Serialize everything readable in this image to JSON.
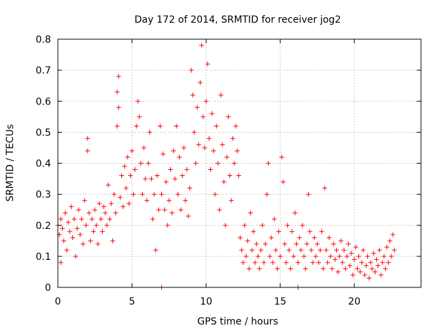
{
  "chart_data": {
    "type": "scatter",
    "title": "Day 172 of 2014, SRMTID for receiver jog2",
    "xlabel": "GPS time / hours",
    "ylabel": "SRMTID / TECUs",
    "xlim": [
      0,
      24.5
    ],
    "ylim": [
      0,
      0.8
    ],
    "x_ticks": [
      0,
      5,
      10,
      15,
      20
    ],
    "x_tick_labels": [
      "0",
      "5",
      "10",
      "15",
      "20"
    ],
    "y_ticks": [
      0,
      0.1,
      0.2,
      0.3,
      0.4,
      0.5,
      0.6,
      0.7,
      0.8
    ],
    "y_tick_labels": [
      "0",
      "0.1",
      "0.2",
      "0.3",
      "0.4",
      "0.5",
      "0.6",
      "0.7",
      "0.8"
    ],
    "grid": true,
    "marker": "+",
    "color": "#ff0000",
    "series": [
      {
        "name": "jog2",
        "points": [
          [
            0.0,
            0.2
          ],
          [
            0.1,
            0.17
          ],
          [
            0.2,
            0.08
          ],
          [
            0.2,
            0.22
          ],
          [
            0.3,
            0.19
          ],
          [
            0.4,
            0.15
          ],
          [
            0.5,
            0.24
          ],
          [
            0.6,
            0.12
          ],
          [
            0.7,
            0.21
          ],
          [
            0.8,
            0.18
          ],
          [
            0.9,
            0.26
          ],
          [
            1.0,
            0.16
          ],
          [
            1.1,
            0.22
          ],
          [
            1.2,
            0.1
          ],
          [
            1.3,
            0.19
          ],
          [
            1.4,
            0.25
          ],
          [
            1.5,
            0.17
          ],
          [
            1.6,
            0.22
          ],
          [
            1.7,
            0.14
          ],
          [
            1.8,
            0.28
          ],
          [
            1.9,
            0.2
          ],
          [
            2.0,
            0.44
          ],
          [
            2.0,
            0.48
          ],
          [
            2.1,
            0.24
          ],
          [
            2.2,
            0.15
          ],
          [
            2.3,
            0.22
          ],
          [
            2.4,
            0.18
          ],
          [
            2.5,
            0.25
          ],
          [
            2.6,
            0.2
          ],
          [
            2.7,
            0.14
          ],
          [
            2.8,
            0.27
          ],
          [
            2.9,
            0.22
          ],
          [
            3.0,
            0.18
          ],
          [
            3.1,
            0.26
          ],
          [
            3.2,
            0.24
          ],
          [
            3.3,
            0.2
          ],
          [
            3.4,
            0.33
          ],
          [
            3.5,
            0.22
          ],
          [
            3.6,
            0.27
          ],
          [
            3.7,
            0.15
          ],
          [
            3.8,
            0.3
          ],
          [
            3.9,
            0.24
          ],
          [
            4.0,
            0.52
          ],
          [
            4.0,
            0.63
          ],
          [
            4.1,
            0.68
          ],
          [
            4.1,
            0.58
          ],
          [
            4.2,
            0.29
          ],
          [
            4.3,
            0.36
          ],
          [
            4.4,
            0.26
          ],
          [
            4.5,
            0.39
          ],
          [
            4.6,
            0.32
          ],
          [
            4.7,
            0.42
          ],
          [
            4.8,
            0.27
          ],
          [
            4.9,
            0.36
          ],
          [
            5.0,
            0.44
          ],
          [
            5.1,
            0.3
          ],
          [
            5.2,
            0.38
          ],
          [
            5.3,
            0.52
          ],
          [
            5.4,
            0.6
          ],
          [
            5.5,
            0.55
          ],
          [
            5.6,
            0.4
          ],
          [
            5.7,
            0.3
          ],
          [
            5.8,
            0.45
          ],
          [
            5.9,
            0.35
          ],
          [
            6.0,
            0.28
          ],
          [
            6.1,
            0.4
          ],
          [
            6.2,
            0.5
          ],
          [
            6.3,
            0.35
          ],
          [
            6.4,
            0.22
          ],
          [
            6.5,
            0.3
          ],
          [
            6.6,
            0.12
          ],
          [
            6.7,
            0.36
          ],
          [
            6.8,
            0.25
          ],
          [
            6.9,
            0.52
          ],
          [
            7.0,
            0.3
          ],
          [
            7.1,
            0.43
          ],
          [
            7.2,
            0.25
          ],
          [
            7.3,
            0.34
          ],
          [
            7.4,
            0.2
          ],
          [
            7.5,
            0.28
          ],
          [
            7.6,
            0.38
          ],
          [
            7.7,
            0.24
          ],
          [
            7.8,
            0.44
          ],
          [
            7.9,
            0.35
          ],
          [
            8.0,
            0.52
          ],
          [
            8.1,
            0.3
          ],
          [
            8.2,
            0.42
          ],
          [
            8.3,
            0.25
          ],
          [
            8.4,
            0.36
          ],
          [
            8.5,
            0.45
          ],
          [
            8.6,
            0.28
          ],
          [
            8.7,
            0.38
          ],
          [
            8.8,
            0.23
          ],
          [
            8.9,
            0.32
          ],
          [
            9.0,
            0.7
          ],
          [
            9.1,
            0.62
          ],
          [
            9.2,
            0.5
          ],
          [
            9.3,
            0.4
          ],
          [
            9.4,
            0.58
          ],
          [
            9.5,
            0.46
          ],
          [
            9.6,
            0.66
          ],
          [
            9.7,
            0.78
          ],
          [
            9.8,
            0.55
          ],
          [
            9.9,
            0.45
          ],
          [
            10.0,
            0.6
          ],
          [
            10.1,
            0.72
          ],
          [
            10.2,
            0.48
          ],
          [
            10.3,
            0.38
          ],
          [
            10.4,
            0.56
          ],
          [
            10.5,
            0.44
          ],
          [
            10.6,
            0.3
          ],
          [
            10.7,
            0.52
          ],
          [
            10.8,
            0.4
          ],
          [
            10.9,
            0.25
          ],
          [
            11.0,
            0.62
          ],
          [
            11.1,
            0.46
          ],
          [
            11.2,
            0.34
          ],
          [
            11.3,
            0.2
          ],
          [
            11.4,
            0.42
          ],
          [
            11.5,
            0.55
          ],
          [
            11.6,
            0.36
          ],
          [
            11.7,
            0.28
          ],
          [
            11.8,
            0.48
          ],
          [
            11.9,
            0.4
          ],
          [
            12.0,
            0.52
          ],
          [
            12.1,
            0.44
          ],
          [
            12.2,
            0.36
          ],
          [
            12.3,
            0.16
          ],
          [
            12.4,
            0.12
          ],
          [
            12.5,
            0.08
          ],
          [
            12.6,
            0.2
          ],
          [
            12.7,
            0.1
          ],
          [
            12.8,
            0.15
          ],
          [
            12.9,
            0.06
          ],
          [
            13.0,
            0.24
          ],
          [
            13.1,
            0.12
          ],
          [
            13.2,
            0.18
          ],
          [
            13.3,
            0.08
          ],
          [
            13.4,
            0.14
          ],
          [
            13.5,
            0.1
          ],
          [
            13.6,
            0.06
          ],
          [
            13.7,
            0.12
          ],
          [
            13.8,
            0.2
          ],
          [
            13.9,
            0.08
          ],
          [
            14.0,
            0.14
          ],
          [
            14.1,
            0.3
          ],
          [
            14.2,
            0.4
          ],
          [
            14.3,
            0.1
          ],
          [
            14.4,
            0.16
          ],
          [
            14.5,
            0.08
          ],
          [
            14.6,
            0.22
          ],
          [
            14.7,
            0.12
          ],
          [
            14.8,
            0.06
          ],
          [
            14.9,
            0.18
          ],
          [
            15.0,
            0.1
          ],
          [
            15.1,
            0.42
          ],
          [
            15.2,
            0.34
          ],
          [
            15.3,
            0.14
          ],
          [
            15.4,
            0.08
          ],
          [
            15.5,
            0.2
          ],
          [
            15.6,
            0.12
          ],
          [
            15.7,
            0.06
          ],
          [
            15.8,
            0.18
          ],
          [
            15.9,
            0.1
          ],
          [
            16.0,
            0.24
          ],
          [
            16.1,
            0.14
          ],
          [
            16.2,
            0.08
          ],
          [
            16.3,
            0.16
          ],
          [
            16.4,
            0.12
          ],
          [
            16.5,
            0.2
          ],
          [
            16.6,
            0.1
          ],
          [
            16.7,
            0.06
          ],
          [
            16.8,
            0.14
          ],
          [
            16.9,
            0.3
          ],
          [
            17.0,
            0.18
          ],
          [
            17.1,
            0.12
          ],
          [
            17.2,
            0.08
          ],
          [
            17.3,
            0.16
          ],
          [
            17.4,
            0.1
          ],
          [
            17.5,
            0.14
          ],
          [
            17.6,
            0.08
          ],
          [
            17.7,
            0.12
          ],
          [
            17.8,
            0.18
          ],
          [
            17.9,
            0.06
          ],
          [
            18.0,
            0.32
          ],
          [
            18.1,
            0.12
          ],
          [
            18.2,
            0.08
          ],
          [
            18.3,
            0.16
          ],
          [
            18.4,
            0.1
          ],
          [
            18.5,
            0.06
          ],
          [
            18.6,
            0.14
          ],
          [
            18.7,
            0.09
          ],
          [
            18.8,
            0.12
          ],
          [
            18.9,
            0.05
          ],
          [
            19.0,
            0.1
          ],
          [
            19.1,
            0.15
          ],
          [
            19.2,
            0.08
          ],
          [
            19.3,
            0.12
          ],
          [
            19.4,
            0.06
          ],
          [
            19.5,
            0.1
          ],
          [
            19.6,
            0.14
          ],
          [
            19.7,
            0.07
          ],
          [
            19.8,
            0.11
          ],
          [
            19.9,
            0.04
          ],
          [
            20.0,
            0.09
          ],
          [
            20.1,
            0.13
          ],
          [
            20.2,
            0.06
          ],
          [
            20.3,
            0.1
          ],
          [
            20.4,
            0.05
          ],
          [
            20.5,
            0.08
          ],
          [
            20.6,
            0.12
          ],
          [
            20.7,
            0.04
          ],
          [
            20.8,
            0.07
          ],
          [
            20.9,
            0.1
          ],
          [
            21.0,
            0.03
          ],
          [
            21.1,
            0.08
          ],
          [
            21.2,
            0.06
          ],
          [
            21.3,
            0.11
          ],
          [
            21.4,
            0.05
          ],
          [
            21.5,
            0.09
          ],
          [
            21.6,
            0.07
          ],
          [
            21.7,
            0.12
          ],
          [
            21.8,
            0.04
          ],
          [
            21.9,
            0.08
          ],
          [
            22.0,
            0.1
          ],
          [
            22.1,
            0.06
          ],
          [
            22.2,
            0.13
          ],
          [
            22.3,
            0.08
          ],
          [
            22.4,
            0.15
          ],
          [
            22.5,
            0.1
          ],
          [
            22.6,
            0.17
          ],
          [
            22.7,
            0.12
          ],
          [
            7.0,
            0.0
          ],
          [
            16.2,
            0.0
          ]
        ]
      }
    ]
  }
}
